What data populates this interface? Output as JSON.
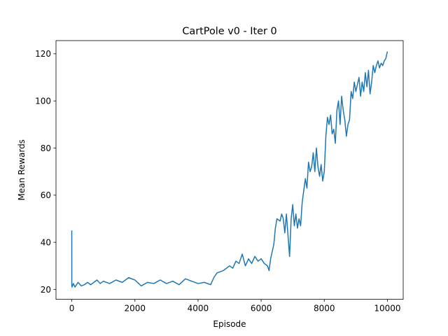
{
  "chart_data": {
    "type": "line",
    "title": "CartPole v0 - Iter 0",
    "xlabel": "Episode",
    "ylabel": "Mean Rewards",
    "xlim": [
      -500,
      10500
    ],
    "ylim": [
      15.8,
      125.6
    ],
    "xticks": [
      0,
      2000,
      4000,
      6000,
      8000,
      10000
    ],
    "yticks": [
      20,
      40,
      60,
      80,
      100,
      120
    ],
    "xtick_labels": [
      "0",
      "2000",
      "4000",
      "6000",
      "8000",
      "10000"
    ],
    "ytick_labels": [
      "20",
      "40",
      "60",
      "80",
      "100",
      "120"
    ],
    "grid": false,
    "legend": "none",
    "series": [
      {
        "color": "#1f77b4",
        "x": [
          0,
          1,
          5,
          20,
          50,
          100,
          200,
          300,
          400,
          500,
          600,
          700,
          800,
          900,
          1000,
          1200,
          1400,
          1600,
          1800,
          2000,
          2200,
          2400,
          2600,
          2800,
          3000,
          3200,
          3400,
          3600,
          3800,
          4000,
          4200,
          4400,
          4500,
          4600,
          4800,
          5000,
          5100,
          5200,
          5300,
          5400,
          5500,
          5600,
          5700,
          5800,
          5900,
          6000,
          6100,
          6200,
          6250,
          6300,
          6400,
          6450,
          6500,
          6600,
          6650,
          6700,
          6750,
          6800,
          6900,
          6950,
          7000,
          7050,
          7100,
          7150,
          7200,
          7250,
          7300,
          7350,
          7400,
          7450,
          7500,
          7550,
          7600,
          7650,
          7700,
          7750,
          7800,
          7850,
          7900,
          7950,
          8000,
          8050,
          8100,
          8150,
          8200,
          8250,
          8300,
          8350,
          8400,
          8450,
          8500,
          8550,
          8600,
          8650,
          8700,
          8750,
          8800,
          8850,
          8900,
          8950,
          9000,
          9050,
          9100,
          9150,
          9200,
          9250,
          9300,
          9350,
          9400,
          9450,
          9500,
          9550,
          9600,
          9650,
          9700,
          9750,
          9800,
          9850,
          9900,
          9950,
          10000
        ],
        "y": [
          45,
          22,
          21,
          21.5,
          22.5,
          21,
          23,
          21.5,
          22,
          23,
          22,
          23,
          24,
          22.5,
          23.5,
          22.5,
          24,
          23,
          25,
          24,
          21.5,
          23,
          22.5,
          24,
          22.5,
          23.5,
          22,
          24.5,
          23.5,
          22.5,
          23,
          22,
          25,
          27,
          28,
          30,
          29,
          32,
          31,
          35,
          30,
          33,
          31,
          34,
          32,
          33,
          31,
          30,
          28,
          33,
          39,
          46,
          50,
          49,
          52,
          50,
          44,
          52,
          34,
          50,
          56,
          47,
          52,
          46,
          50,
          47,
          57,
          62,
          67,
          63,
          74,
          70,
          72,
          78,
          70,
          80,
          72,
          68,
          73,
          66,
          70,
          85,
          93,
          90,
          94,
          86,
          88,
          82,
          96,
          100,
          90,
          102,
          96,
          92,
          85,
          90,
          92,
          104,
          101,
          108,
          104,
          107,
          110,
          102,
          108,
          104,
          112,
          106,
          113,
          103,
          108,
          115,
          112,
          115,
          117,
          114,
          116,
          115,
          117,
          118,
          121
        ]
      }
    ]
  }
}
